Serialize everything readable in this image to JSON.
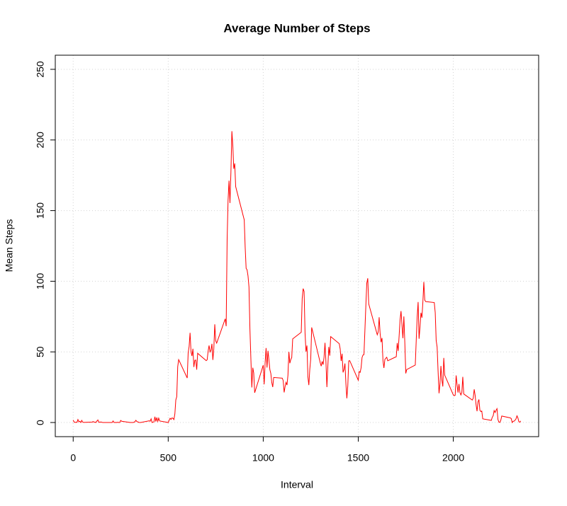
{
  "chart_data": {
    "type": "line",
    "title": "Average Number of Steps",
    "x_label": "Interval",
    "y_label": "Mean Steps",
    "x": [
      0,
      5,
      10,
      15,
      20,
      25,
      30,
      35,
      40,
      45,
      50,
      55,
      100,
      105,
      110,
      115,
      120,
      125,
      130,
      135,
      140,
      145,
      150,
      155,
      200,
      205,
      210,
      215,
      220,
      225,
      230,
      235,
      240,
      245,
      250,
      255,
      300,
      305,
      310,
      315,
      320,
      325,
      330,
      335,
      340,
      345,
      350,
      355,
      400,
      405,
      410,
      415,
      420,
      425,
      430,
      435,
      440,
      445,
      450,
      455,
      500,
      505,
      510,
      515,
      520,
      525,
      530,
      535,
      540,
      545,
      550,
      555,
      600,
      605,
      610,
      615,
      620,
      625,
      630,
      635,
      640,
      645,
      650,
      655,
      700,
      705,
      710,
      715,
      720,
      725,
      730,
      735,
      740,
      745,
      750,
      755,
      800,
      805,
      810,
      815,
      820,
      825,
      830,
      835,
      840,
      845,
      850,
      855,
      900,
      905,
      910,
      915,
      920,
      925,
      930,
      935,
      940,
      945,
      950,
      955,
      1000,
      1005,
      1010,
      1015,
      1020,
      1025,
      1030,
      1035,
      1040,
      1045,
      1050,
      1055,
      1100,
      1105,
      1110,
      1115,
      1120,
      1125,
      1130,
      1135,
      1140,
      1145,
      1150,
      1155,
      1200,
      1205,
      1210,
      1215,
      1220,
      1225,
      1230,
      1235,
      1240,
      1245,
      1250,
      1255,
      1300,
      1305,
      1310,
      1315,
      1320,
      1325,
      1330,
      1335,
      1340,
      1345,
      1350,
      1355,
      1400,
      1405,
      1410,
      1415,
      1420,
      1425,
      1430,
      1435,
      1440,
      1445,
      1450,
      1455,
      1500,
      1505,
      1510,
      1515,
      1520,
      1525,
      1530,
      1535,
      1540,
      1545,
      1550,
      1555,
      1600,
      1605,
      1610,
      1615,
      1620,
      1625,
      1630,
      1635,
      1640,
      1645,
      1650,
      1655,
      1700,
      1705,
      1710,
      1715,
      1720,
      1725,
      1730,
      1735,
      1740,
      1745,
      1750,
      1755,
      1800,
      1805,
      1810,
      1815,
      1820,
      1825,
      1830,
      1835,
      1840,
      1845,
      1850,
      1855,
      1900,
      1905,
      1910,
      1915,
      1920,
      1925,
      1930,
      1935,
      1940,
      1945,
      1950,
      1955,
      2000,
      2005,
      2010,
      2015,
      2020,
      2025,
      2030,
      2035,
      2040,
      2045,
      2050,
      2055,
      2100,
      2105,
      2110,
      2115,
      2120,
      2125,
      2130,
      2135,
      2140,
      2145,
      2150,
      2155,
      2200,
      2205,
      2210,
      2215,
      2220,
      2225,
      2230,
      2235,
      2240,
      2245,
      2250,
      2255,
      2300,
      2305,
      2310,
      2315,
      2320,
      2325,
      2330,
      2335,
      2340,
      2345,
      2350,
      2355
    ],
    "series": [
      {
        "name": "Mean Steps",
        "color": "#ff0000",
        "values": [
          1.7,
          0.3,
          0.1,
          0.2,
          0.1,
          2.1,
          0.5,
          0.9,
          0,
          1.5,
          0.3,
          0.1,
          0.3,
          0.7,
          0.2,
          0.3,
          0,
          1.1,
          1.8,
          0.2,
          0.2,
          0.4,
          0.3,
          0,
          0,
          0,
          1.1,
          0,
          0,
          0.1,
          0,
          0.2,
          0,
          0,
          1.5,
          0.9,
          0,
          0,
          0,
          0,
          0.2,
          0.6,
          1.6,
          0.6,
          0.5,
          0.1,
          0,
          0,
          1.2,
          0.9,
          2.6,
          0,
          0.3,
          0.4,
          4.1,
          0.7,
          3.5,
          0.8,
          3.1,
          1.1,
          0,
          1.6,
          3,
          2.2,
          3.3,
          3,
          2.1,
          6.1,
          16,
          18.3,
          39.5,
          44.5,
          31.5,
          49.3,
          53.8,
          63.5,
          50,
          47.1,
          52.2,
          39.3,
          44,
          44.2,
          37.4,
          49,
          43.8,
          44.4,
          50.5,
          54.5,
          49.9,
          51,
          55.7,
          44.3,
          52.3,
          69.5,
          57.8,
          56.2,
          73.4,
          68.2,
          129.4,
          157.5,
          171.2,
          155.4,
          177.3,
          206.2,
          195.9,
          179.6,
          183.4,
          167,
          143.5,
          124,
          109.1,
          108.1,
          103.7,
          95.9,
          66.2,
          45.2,
          24.8,
          38.8,
          35,
          21.1,
          40.6,
          27,
          42.4,
          52.7,
          38.9,
          50.8,
          44.3,
          37.4,
          34.7,
          28.3,
          25.1,
          31.9,
          31.4,
          29.7,
          21.3,
          25.5,
          28.4,
          26.5,
          33.4,
          50,
          42,
          44.6,
          46,
          59.2,
          63.9,
          87.7,
          94.8,
          92.8,
          63.4,
          50.2,
          54.5,
          32.4,
          26.5,
          37.7,
          45.1,
          67.3,
          42.3,
          39.9,
          43.3,
          41,
          46.2,
          56.4,
          42.8,
          25.1,
          39.9,
          53.5,
          47.3,
          60.8,
          55.8,
          52,
          43.6,
          48.7,
          35.5,
          37.5,
          41.8,
          27.5,
          17.1,
          26.1,
          43.6,
          43.8,
          30,
          36.1,
          35.5,
          38.8,
          46,
          47.8,
          48.1,
          65.3,
          82.9,
          98.7,
          102.1,
          84,
          62.1,
          64.1,
          74.5,
          63.2,
          56.9,
          59.8,
          43.9,
          38.6,
          44.7,
          45.5,
          46.2,
          43.7,
          46.6,
          56.3,
          50.7,
          61.2,
          72.7,
          78.9,
          68.9,
          59.7,
          75.1,
          56.5,
          34.8,
          37.5,
          40.7,
          58,
          74.7,
          85.3,
          59.3,
          67.8,
          77.7,
          74.2,
          85.3,
          99.5,
          86.6,
          85.6,
          84.9,
          77.8,
          58,
          53.4,
          36.3,
          20.7,
          27.4,
          40,
          30.2,
          25.5,
          45.7,
          33.5,
          19.6,
          19,
          19.3,
          33.3,
          26.8,
          21.2,
          27.3,
          21.3,
          19.5,
          21.3,
          32.3,
          20.2,
          15.9,
          17.2,
          23.5,
          19.2,
          12.5,
          8,
          14.7,
          16.3,
          8.7,
          7.8,
          8.1,
          2.6,
          1.5,
          3.7,
          4.8,
          8.5,
          7.1,
          8.7,
          9.8,
          2.2,
          0.3,
          0.1,
          1.6,
          4.6,
          3.3,
          2.8,
          0,
          0.8,
          1,
          1.6,
          2.6,
          4.7,
          3.3,
          0.6,
          0.2,
          1.1
        ]
      }
    ],
    "xlim": [
      -94.2,
      2449.2
    ],
    "ylim": [
      -10,
      260
    ],
    "xticks": [
      0,
      500,
      1000,
      1500,
      2000
    ],
    "yticks": [
      0,
      50,
      100,
      150,
      200,
      250
    ],
    "grid": true
  }
}
